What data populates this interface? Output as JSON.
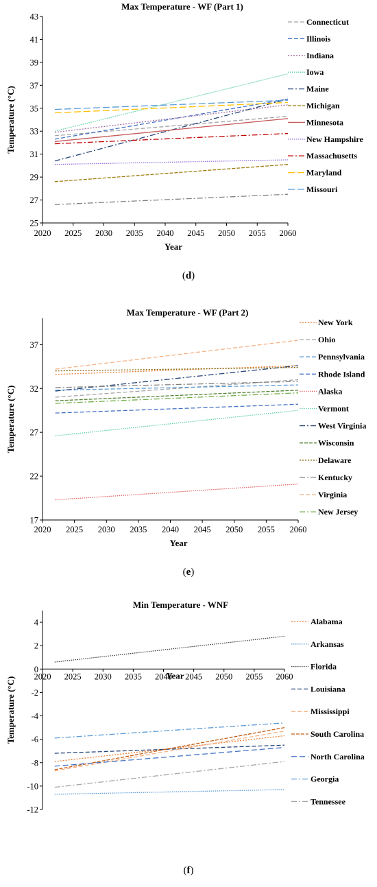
{
  "chart_data": [
    {
      "type": "line",
      "title": "Max Temperature - WF (Part 1)",
      "xlabel": "Year",
      "ylabel": "Temperature (°C)",
      "panel_label": "d",
      "xlim": [
        2020,
        2060
      ],
      "ylim": [
        25,
        43
      ],
      "xticks": [
        "2020",
        "2025",
        "2030",
        "2035",
        "2040",
        "2045",
        "2050",
        "2055",
        "2060"
      ],
      "yticks": [
        "25",
        "27",
        "29",
        "31",
        "33",
        "35",
        "37",
        "39",
        "41",
        "43"
      ],
      "grid": false,
      "legend_position": "right",
      "series": [
        {
          "name": "Connecticut",
          "x": [
            2022,
            2060
          ],
          "values": [
            32.6,
            34.3
          ],
          "color": "#a5a5a5",
          "dash": "6,3"
        },
        {
          "name": "Illinois",
          "x": [
            2022,
            2060
          ],
          "values": [
            32.3,
            35.8
          ],
          "color": "#4472c4",
          "dash": "6,3"
        },
        {
          "name": "Indiana",
          "x": [
            2022,
            2060
          ],
          "values": [
            32.9,
            35.3
          ],
          "color": "#a26fa5",
          "dash": "2,2"
        },
        {
          "name": "Iowa",
          "x": [
            2022,
            2060
          ],
          "values": [
            33.0,
            38.0
          ],
          "color": "#5fd1a0",
          "dash": "1.5,1.5"
        },
        {
          "name": "Maine",
          "x": [
            2022,
            2060
          ],
          "values": [
            30.4,
            35.8
          ],
          "color": "#264478",
          "dash": "8,3,2,3"
        },
        {
          "name": "Michigan",
          "x": [
            2022,
            2060
          ],
          "values": [
            28.6,
            30.1
          ],
          "color": "#9e7c0c",
          "dash": "5,2"
        },
        {
          "name": "Minnesota",
          "x": [
            2022,
            2060
          ],
          "values": [
            32.1,
            34.1
          ],
          "color": "#c65a5a",
          "dash": "none"
        },
        {
          "name": "New Hampshire",
          "x": [
            2022,
            2060
          ],
          "values": [
            30.1,
            30.5
          ],
          "color": "#9370db",
          "dash": "1.5,1.5"
        },
        {
          "name": "Massachusetts",
          "x": [
            2022,
            2060
          ],
          "values": [
            31.9,
            32.8
          ],
          "color": "#c00000",
          "dash": "8,3,2,3"
        },
        {
          "name": "Maryland",
          "x": [
            2022,
            2060
          ],
          "values": [
            34.6,
            35.5
          ],
          "color": "#ffc000",
          "dash": "10,4"
        },
        {
          "name": "Missouri",
          "x": [
            2022,
            2060
          ],
          "values": [
            34.9,
            35.7
          ],
          "color": "#5b9bd5",
          "dash": "10,4"
        },
        {
          "name": "",
          "x": [
            2022,
            2060
          ],
          "values": [
            26.6,
            27.5
          ],
          "color": "#808080",
          "dash": "8,3,2,3"
        }
      ]
    },
    {
      "type": "line",
      "title": "Max Temperature - WF (Part 2)",
      "xlabel": "Year",
      "ylabel": "Temperature (°C)",
      "panel_label": "e",
      "xlim": [
        2020,
        2060
      ],
      "ylim": [
        17,
        40
      ],
      "xticks": [
        "2020",
        "2025",
        "2030",
        "2035",
        "2040",
        "2045",
        "2050",
        "2055",
        "2060"
      ],
      "yticks": [
        "17",
        "22",
        "27",
        "32",
        "37"
      ],
      "grid": false,
      "legend_position": "right",
      "series": [
        {
          "name": "New York",
          "x": [
            2022,
            2060
          ],
          "values": [
            33.6,
            34.6
          ],
          "color": "#ed7d31",
          "dash": "2,2"
        },
        {
          "name": "Ohio",
          "x": [
            2022,
            2060
          ],
          "values": [
            31.0,
            33.0
          ],
          "color": "#a5a5a5",
          "dash": "6,3"
        },
        {
          "name": "Pennsylvania",
          "x": [
            2022,
            2060
          ],
          "values": [
            31.8,
            32.4
          ],
          "color": "#5b9bd5",
          "dash": "6,3"
        },
        {
          "name": "Rhode Island",
          "x": [
            2022,
            2060
          ],
          "values": [
            29.2,
            30.2
          ],
          "color": "#4472c4",
          "dash": "6,3"
        },
        {
          "name": "Alaska",
          "x": [
            2022,
            2060
          ],
          "values": [
            19.3,
            21.1
          ],
          "color": "#e06666",
          "dash": "1.5,1.5"
        },
        {
          "name": "Vermont",
          "x": [
            2022,
            2060
          ],
          "values": [
            26.6,
            29.5
          ],
          "color": "#5fd1a0",
          "dash": "1.5,1.5"
        },
        {
          "name": "West Virginia",
          "x": [
            2022,
            2060
          ],
          "values": [
            31.7,
            34.6
          ],
          "color": "#264478",
          "dash": "8,3,2,3"
        },
        {
          "name": "Wisconsin",
          "x": [
            2022,
            2060
          ],
          "values": [
            30.6,
            31.8
          ],
          "color": "#548235",
          "dash": "5,2"
        },
        {
          "name": "Delaware",
          "x": [
            2022,
            2060
          ],
          "values": [
            34.0,
            34.4
          ],
          "color": "#7f6000",
          "dash": "2,2"
        },
        {
          "name": "Kentucky",
          "x": [
            2022,
            2060
          ],
          "values": [
            32.1,
            32.8
          ],
          "color": "#808080",
          "dash": "8,3,2,3"
        },
        {
          "name": "Virginia",
          "x": [
            2022,
            2060
          ],
          "values": [
            34.2,
            37.5
          ],
          "color": "#f4b183",
          "dash": "6,3"
        },
        {
          "name": "New Jersey",
          "x": [
            2022,
            2060
          ],
          "values": [
            30.3,
            31.5
          ],
          "color": "#70ad47",
          "dash": "8,3,2,3"
        }
      ]
    },
    {
      "type": "line",
      "title": "Min Temperature - WNF",
      "xlabel": "Year",
      "ylabel": "Temperature (°C)",
      "panel_label": "f",
      "xlim": [
        2020,
        2060
      ],
      "ylim": [
        -12,
        5
      ],
      "xticks": [
        "2020",
        "2025",
        "2030",
        "2035",
        "2040",
        "2045",
        "2050",
        "2055",
        "2060"
      ],
      "yticks": [
        "-12",
        "-10",
        "-8",
        "-6",
        "-4",
        "-2",
        "0",
        "2",
        "4"
      ],
      "grid": false,
      "legend_position": "right",
      "series": [
        {
          "name": "Alabama",
          "x": [
            2022,
            2060
          ],
          "values": [
            -7.9,
            -5.7
          ],
          "color": "#ed7d31",
          "dash": "2,2"
        },
        {
          "name": "Arkansas",
          "x": [
            2022,
            2060
          ],
          "values": [
            -10.7,
            -10.3
          ],
          "color": "#5b9bd5",
          "dash": "1.5,1.5"
        },
        {
          "name": "Florida",
          "x": [
            2022,
            2060
          ],
          "values": [
            0.6,
            2.8
          ],
          "color": "#404040",
          "dash": "1.5,1.5"
        },
        {
          "name": "Louisiana",
          "x": [
            2022,
            2060
          ],
          "values": [
            -7.2,
            -6.5
          ],
          "color": "#264478",
          "dash": "6,3"
        },
        {
          "name": "Mississippi",
          "x": [
            2022,
            2060
          ],
          "values": [
            -8.7,
            -5.3
          ],
          "color": "#f4b183",
          "dash": "6,3"
        },
        {
          "name": "South Carolina",
          "x": [
            2022,
            2060
          ],
          "values": [
            -8.6,
            -5.0
          ],
          "color": "#c55a11",
          "dash": "5,2"
        },
        {
          "name": "North Carolina",
          "x": [
            2022,
            2060
          ],
          "values": [
            -8.3,
            -6.7
          ],
          "color": "#4472c4",
          "dash": "8,4"
        },
        {
          "name": "Georgia",
          "x": [
            2022,
            2060
          ],
          "values": [
            -5.9,
            -4.6
          ],
          "color": "#5b9bd5",
          "dash": "8,3,2,3"
        },
        {
          "name": "Tennessee",
          "x": [
            2022,
            2060
          ],
          "values": [
            -10.1,
            -7.9
          ],
          "color": "#a5a5a5",
          "dash": "8,3,2,3"
        }
      ]
    }
  ]
}
